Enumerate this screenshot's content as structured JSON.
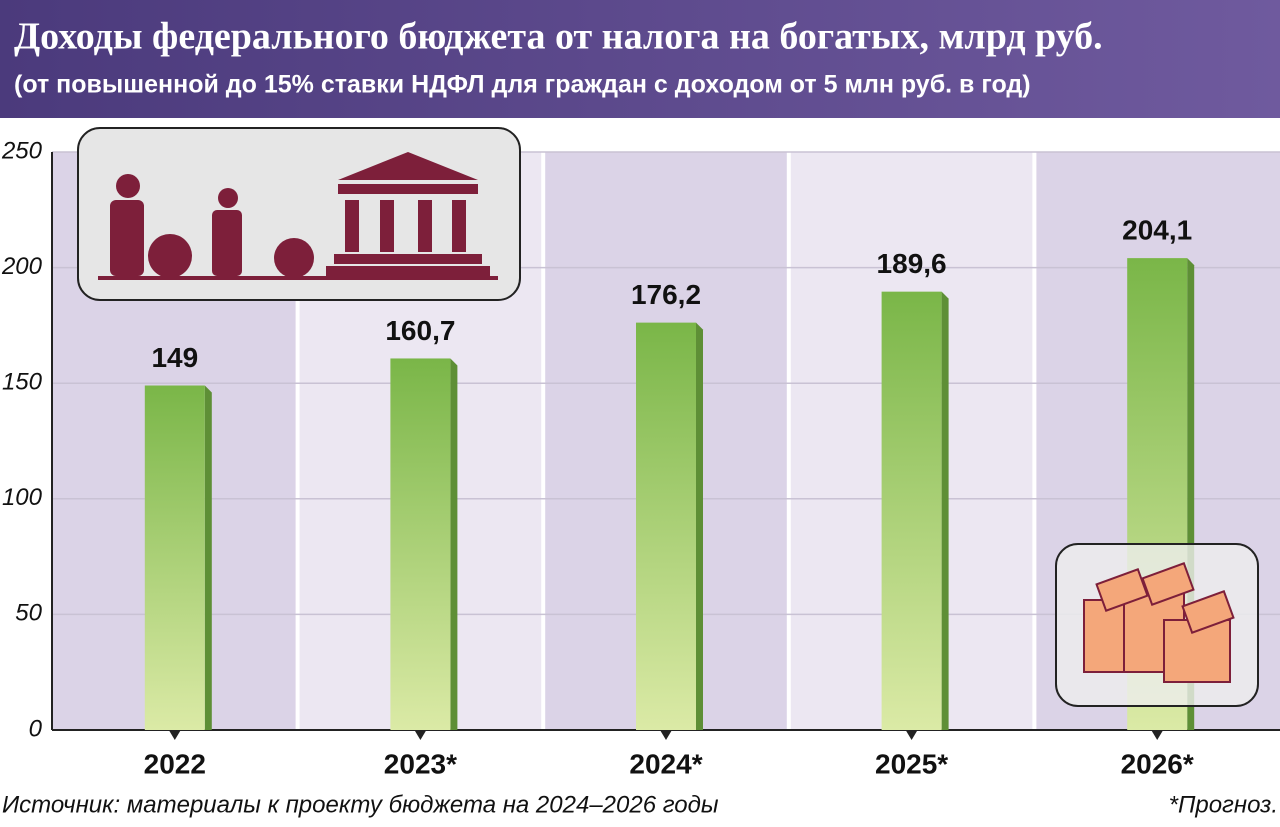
{
  "chart_data": {
    "type": "bar",
    "title": "Доходы федерального бюджета от налога на богатых, млрд руб.",
    "subtitle": "(от повышенной до 15% ставки НДФЛ для граждан с доходом от 5 млн руб. в год)",
    "categories": [
      "2022",
      "2023*",
      "2024*",
      "2025*",
      "2026*"
    ],
    "values": [
      149,
      160.7,
      176.2,
      189.6,
      204.1
    ],
    "value_labels": [
      "149",
      "160,7",
      "176,2",
      "189,6",
      "204,1"
    ],
    "color": "#7ab648",
    "ylim": [
      0,
      250
    ],
    "yticks": [
      0,
      50,
      100,
      150,
      200,
      250
    ],
    "grid": true,
    "source": "Источник: материалы к проекту бюджета на 2024–2026 годы",
    "note": "*Прогноз."
  }
}
